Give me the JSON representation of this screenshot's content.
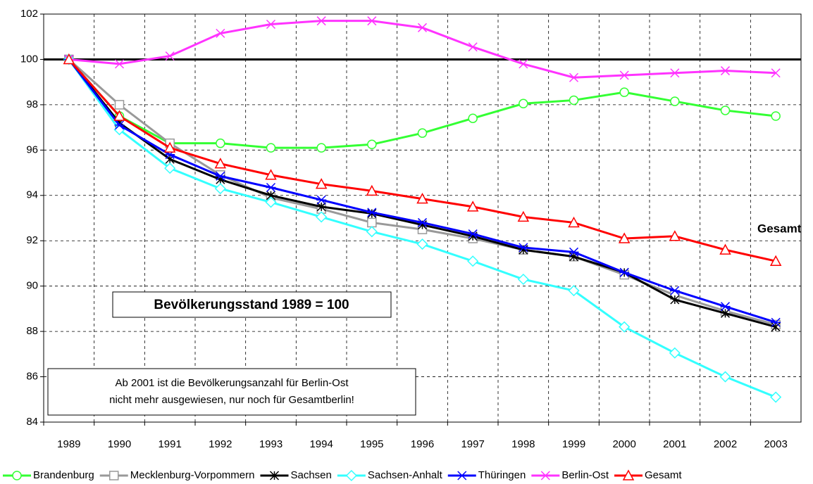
{
  "chart_data": {
    "type": "line",
    "categories": [
      "1989",
      "1990",
      "1991",
      "1992",
      "1993",
      "1994",
      "1995",
      "1996",
      "1997",
      "1998",
      "1999",
      "2000",
      "2001",
      "2002",
      "2003"
    ],
    "ylim": [
      84,
      102
    ],
    "yticks": [
      84,
      86,
      88,
      90,
      92,
      94,
      96,
      98,
      100,
      102
    ],
    "grid": true,
    "reference_line": 100,
    "legend": "bottom",
    "series": [
      {
        "name": "Brandenburg",
        "color": "#33ff33",
        "marker": "circle",
        "values": [
          100,
          97.5,
          96.3,
          96.3,
          96.1,
          96.1,
          96.25,
          96.75,
          97.4,
          98.05,
          98.2,
          98.55,
          98.15,
          97.75,
          97.5
        ]
      },
      {
        "name": "Mecklenburg-Vorpommern",
        "color": "#999999",
        "marker": "square",
        "values": [
          100,
          98.0,
          96.3,
          94.9,
          93.9,
          93.4,
          92.8,
          92.5,
          92.1,
          91.6,
          91.3,
          90.5,
          89.6,
          88.9,
          88.3
        ]
      },
      {
        "name": "Sachsen",
        "color": "#000000",
        "marker": "asterisk",
        "values": [
          100,
          97.2,
          95.6,
          94.7,
          94.0,
          93.5,
          93.2,
          92.7,
          92.2,
          91.6,
          91.3,
          90.6,
          89.4,
          88.8,
          88.2
        ]
      },
      {
        "name": "Sachsen-Anhalt",
        "color": "#33ffff",
        "marker": "diamond",
        "values": [
          100,
          96.9,
          95.2,
          94.3,
          93.7,
          93.05,
          92.4,
          91.85,
          91.1,
          90.3,
          89.8,
          88.2,
          87.05,
          86.0,
          85.1
        ]
      },
      {
        "name": "Thüringen",
        "color": "#0000ff",
        "marker": "star",
        "values": [
          100,
          97.1,
          95.8,
          94.85,
          94.35,
          93.8,
          93.25,
          92.8,
          92.3,
          91.7,
          91.5,
          90.6,
          89.8,
          89.1,
          88.4
        ]
      },
      {
        "name": "Berlin-Ost",
        "color": "#ff33ff",
        "marker": "x",
        "values": [
          100,
          99.8,
          100.15,
          101.15,
          101.55,
          101.7,
          101.7,
          101.4,
          100.55,
          99.8,
          99.2,
          99.3,
          99.4,
          99.5,
          99.4
        ]
      },
      {
        "name": "Gesamt",
        "color": "#ff0000",
        "marker": "triangle",
        "values": [
          100,
          97.5,
          96.1,
          95.4,
          94.9,
          94.5,
          94.2,
          93.85,
          93.5,
          93.05,
          92.8,
          92.1,
          92.2,
          91.6,
          91.1
        ]
      }
    ],
    "annotations": {
      "series_label": "Gesamt",
      "box_title": "Bevölkerungsstand 1989 = 100",
      "note": [
        "Ab 2001 ist die Bevölkerungsanzahl für Berlin-Ost",
        "nicht mehr ausgewiesen, nur noch für Gesamtberlin!"
      ]
    }
  }
}
